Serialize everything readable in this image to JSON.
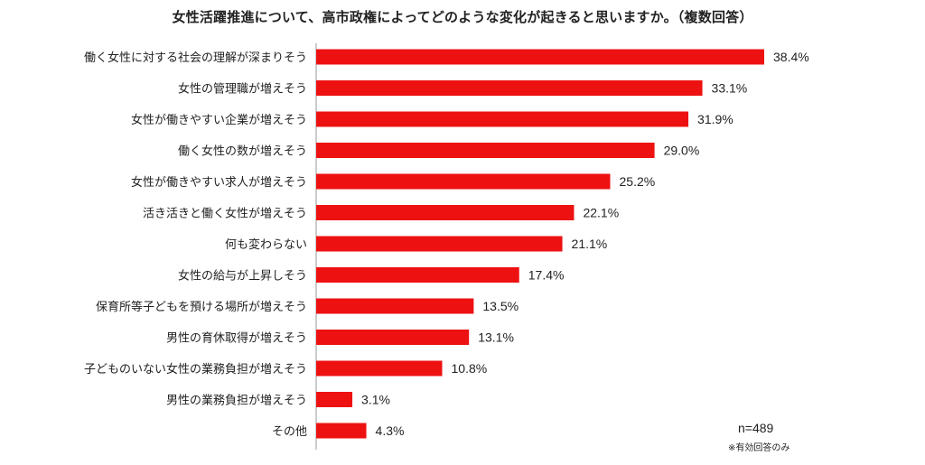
{
  "chart_data": {
    "type": "bar",
    "orientation": "horizontal",
    "title": "女性活躍推進について、高市政権によってどのような変化が起きると思いますか。（複数回答）",
    "categories": [
      "働く女性に対する社会の理解が深まりそう",
      "女性の管理職が増えそう",
      "女性が働きやすい企業が増えそう",
      "働く女性の数が増えそう",
      "女性が働きやすい求人が増えそう",
      "活き活きと働く女性が増えそう",
      "何も変わらない",
      "女性の給与が上昇しそう",
      "保育所等子どもを預ける場所が増えそう",
      "男性の育休取得が増えそう",
      "子どものいない女性の業務負担が増えそう",
      "男性の業務負担が増えそう",
      "その他"
    ],
    "values": [
      38.4,
      33.1,
      31.9,
      29.0,
      25.2,
      22.1,
      21.1,
      17.4,
      13.5,
      13.1,
      10.8,
      3.1,
      4.3
    ],
    "value_labels": [
      "38.4%",
      "33.1%",
      "31.9%",
      "29.0%",
      "25.2%",
      "22.1%",
      "21.1%",
      "17.4%",
      "13.5%",
      "13.1%",
      "10.8%",
      "3.1%",
      "4.3%"
    ],
    "bar_color": "#ee1111",
    "sample_size": "n=489",
    "note": "※有効回答のみ",
    "grid": false
  }
}
